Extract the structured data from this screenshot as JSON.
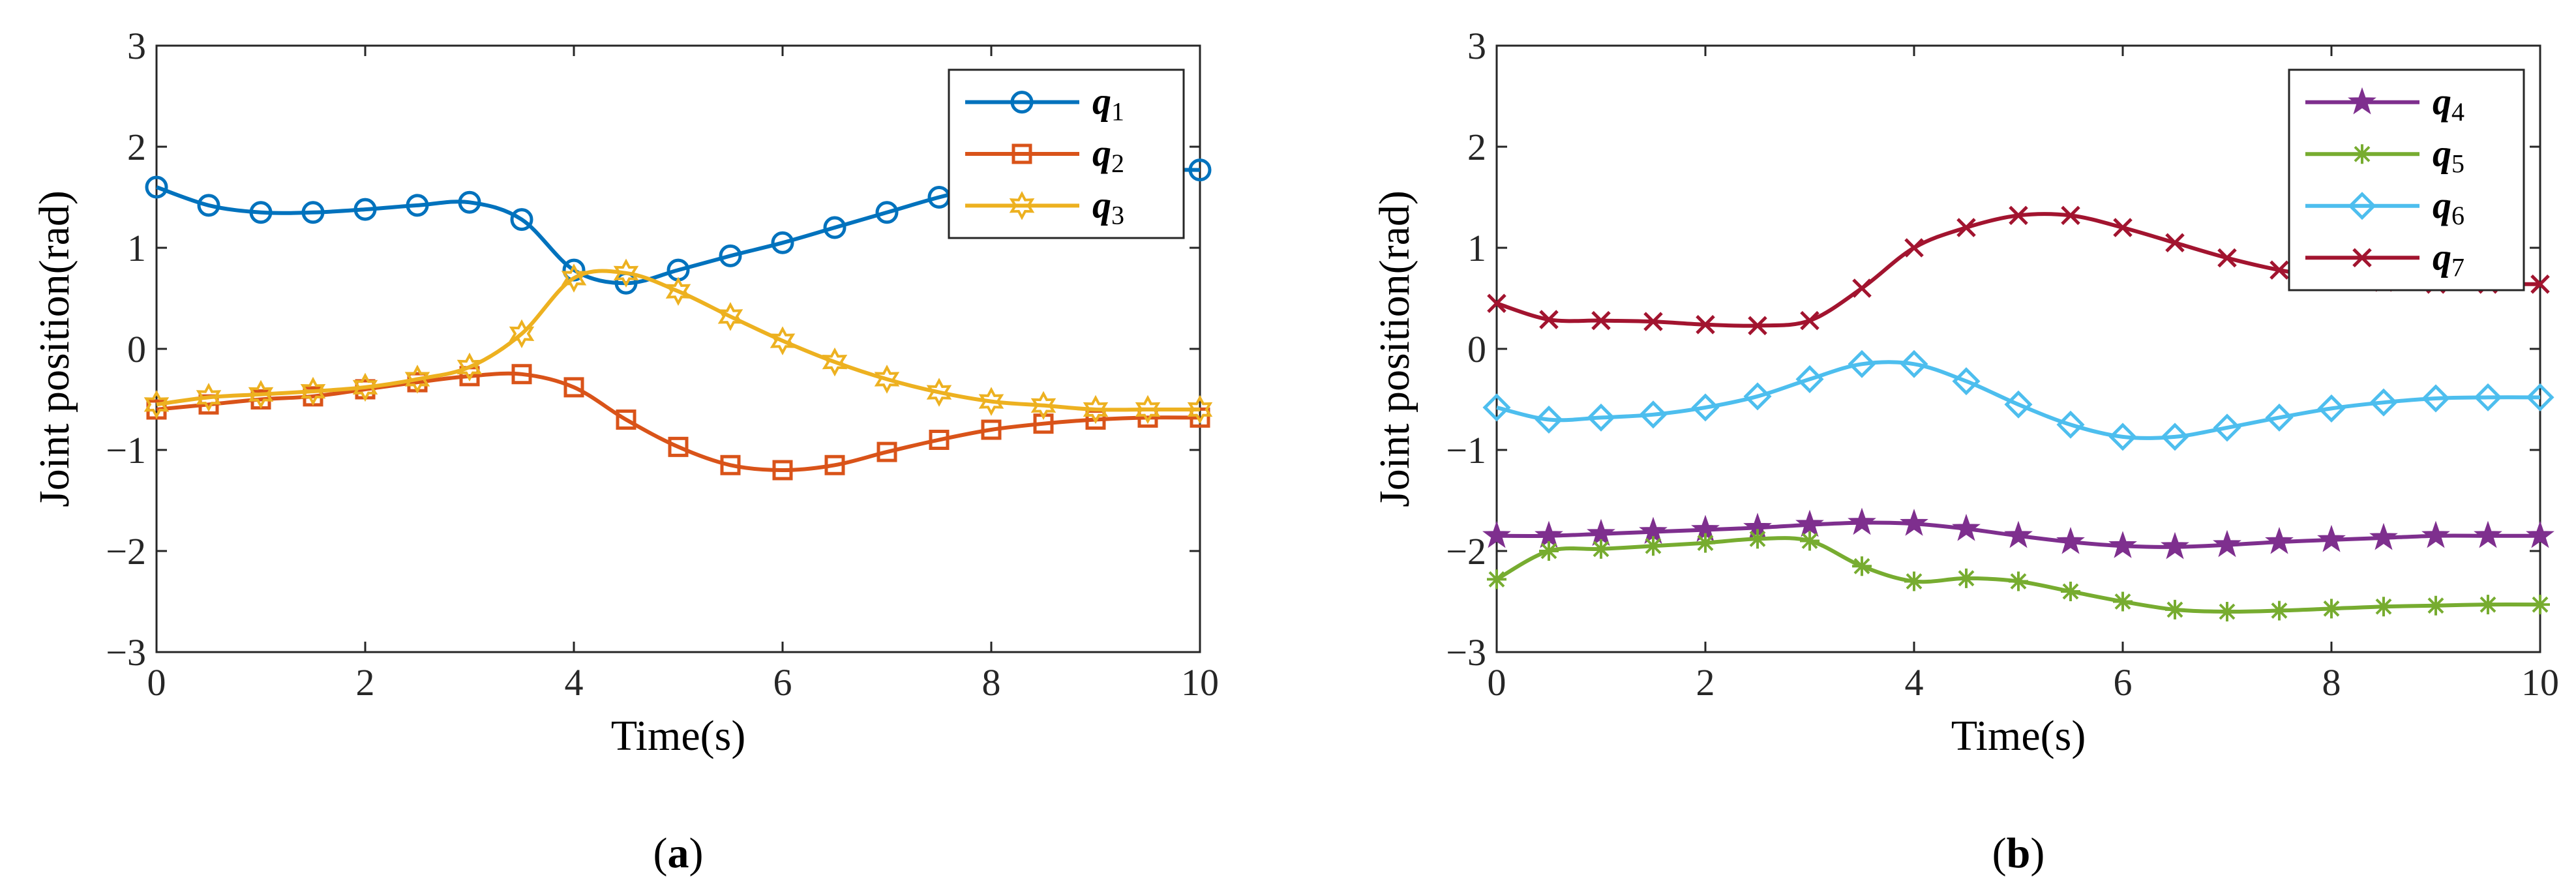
{
  "chart_data": [
    {
      "type": "line",
      "panel_label": "a",
      "xlabel": "Time(s)",
      "ylabel": "Joint position(rad)",
      "xlim": [
        0,
        10
      ],
      "ylim": [
        -3,
        3
      ],
      "xticks": [
        0,
        2,
        4,
        6,
        8,
        10
      ],
      "yticks": [
        -3,
        -2,
        -1,
        0,
        1,
        2,
        3
      ],
      "legend_position": "top-right",
      "grid": false,
      "marker_x": [
        0,
        0.5,
        1,
        1.5,
        2,
        2.5,
        3,
        3.5,
        4,
        4.5,
        5,
        5.5,
        6,
        6.5,
        7,
        7.5,
        8,
        8.5,
        9,
        9.5,
        10
      ],
      "series": [
        {
          "name": "q",
          "subscript": "1",
          "color": "#0072BD",
          "marker": "circle",
          "values": [
            1.6,
            1.42,
            1.35,
            1.35,
            1.38,
            1.42,
            1.45,
            1.28,
            0.78,
            0.65,
            0.78,
            0.92,
            1.05,
            1.2,
            1.35,
            1.5,
            1.62,
            1.7,
            1.75,
            1.77,
            1.77
          ]
        },
        {
          "name": "q",
          "subscript": "2",
          "color": "#D95319",
          "marker": "square",
          "values": [
            -0.6,
            -0.55,
            -0.5,
            -0.47,
            -0.4,
            -0.33,
            -0.27,
            -0.25,
            -0.38,
            -0.7,
            -0.97,
            -1.15,
            -1.2,
            -1.15,
            -1.02,
            -0.9,
            -0.8,
            -0.74,
            -0.7,
            -0.68,
            -0.68
          ]
        },
        {
          "name": "q",
          "subscript": "3",
          "color": "#EDB120",
          "marker": "hexagram",
          "values": [
            -0.55,
            -0.48,
            -0.45,
            -0.42,
            -0.38,
            -0.3,
            -0.18,
            0.15,
            0.7,
            0.75,
            0.57,
            0.32,
            0.08,
            -0.13,
            -0.3,
            -0.43,
            -0.52,
            -0.56,
            -0.6,
            -0.6,
            -0.6
          ]
        }
      ]
    },
    {
      "type": "line",
      "panel_label": "b",
      "xlabel": "Time(s)",
      "ylabel": "Joint position(rad)",
      "xlim": [
        0,
        10
      ],
      "ylim": [
        -3,
        3
      ],
      "xticks": [
        0,
        2,
        4,
        6,
        8,
        10
      ],
      "yticks": [
        -3,
        -2,
        -1,
        0,
        1,
        2,
        3
      ],
      "legend_position": "top-right",
      "grid": false,
      "marker_x": [
        0,
        0.5,
        1,
        1.5,
        2,
        2.5,
        3,
        3.5,
        4,
        4.5,
        5,
        5.5,
        6,
        6.5,
        7,
        7.5,
        8,
        8.5,
        9,
        9.5,
        10
      ],
      "series": [
        {
          "name": "q",
          "subscript": "4",
          "color": "#7E2F8E",
          "marker": "pentagram",
          "values": [
            -1.85,
            -1.85,
            -1.83,
            -1.81,
            -1.79,
            -1.77,
            -1.74,
            -1.72,
            -1.73,
            -1.78,
            -1.85,
            -1.91,
            -1.95,
            -1.96,
            -1.94,
            -1.91,
            -1.89,
            -1.87,
            -1.85,
            -1.85,
            -1.85
          ]
        },
        {
          "name": "q",
          "subscript": "5",
          "color": "#77AC30",
          "marker": "asterisk",
          "values": [
            -2.28,
            -2.0,
            -1.98,
            -1.95,
            -1.92,
            -1.88,
            -1.9,
            -2.15,
            -2.3,
            -2.27,
            -2.3,
            -2.4,
            -2.5,
            -2.58,
            -2.6,
            -2.59,
            -2.57,
            -2.55,
            -2.54,
            -2.53,
            -2.53
          ]
        },
        {
          "name": "q",
          "subscript": "6",
          "color": "#4DBEEE",
          "marker": "diamond",
          "values": [
            -0.58,
            -0.7,
            -0.68,
            -0.65,
            -0.58,
            -0.47,
            -0.3,
            -0.15,
            -0.15,
            -0.32,
            -0.55,
            -0.75,
            -0.87,
            -0.87,
            -0.78,
            -0.68,
            -0.59,
            -0.53,
            -0.49,
            -0.48,
            -0.48
          ]
        },
        {
          "name": "q",
          "subscript": "7",
          "color": "#A2142F",
          "marker": "x",
          "values": [
            0.45,
            0.29,
            0.28,
            0.27,
            0.24,
            0.23,
            0.28,
            0.6,
            1.0,
            1.2,
            1.32,
            1.32,
            1.2,
            1.05,
            0.9,
            0.78,
            0.7,
            0.66,
            0.64,
            0.64,
            0.64
          ]
        }
      ]
    }
  ]
}
